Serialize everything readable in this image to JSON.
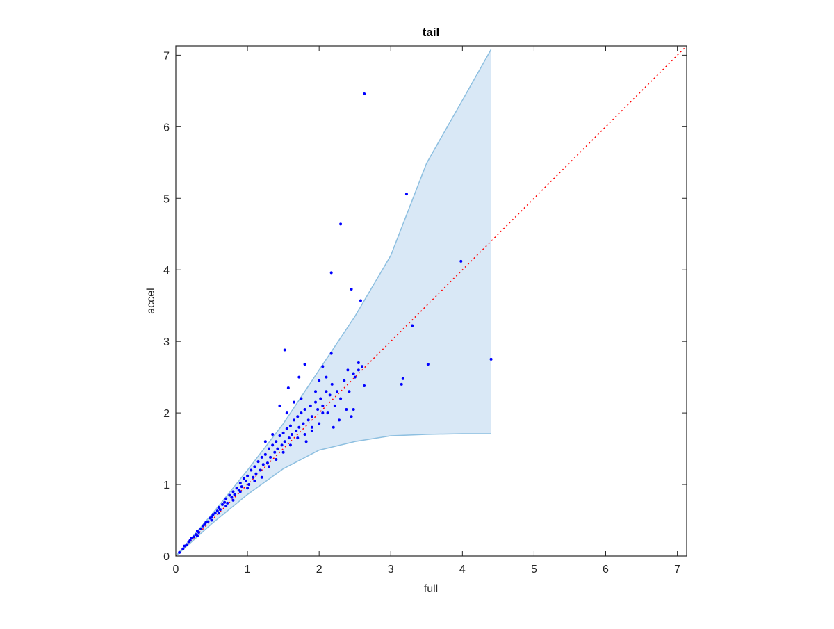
{
  "chart_data": {
    "type": "scatter",
    "title": "tail",
    "x_label": "full",
    "y_label": "accel",
    "xlim": [
      0,
      7.13
    ],
    "ylim": [
      0,
      7.13
    ],
    "xticks": [
      0,
      1,
      2,
      3,
      4,
      5,
      6,
      7
    ],
    "yticks": [
      0,
      1,
      2,
      3,
      4,
      5,
      6,
      7
    ],
    "band": {
      "color": "#9fc5e8",
      "edge_color": "#8dbfe0",
      "x": [
        0,
        0.5,
        1,
        1.5,
        2,
        2.5,
        3,
        3.5,
        4,
        4.4
      ],
      "upper": [
        0,
        0.58,
        1.2,
        1.85,
        2.6,
        3.35,
        4.2,
        5.49,
        6.37,
        7.08
      ],
      "lower": [
        0,
        0.45,
        0.86,
        1.22,
        1.48,
        1.6,
        1.68,
        1.7,
        1.71,
        1.71
      ]
    },
    "reference_line": {
      "color": "#ff0000",
      "x": [
        0,
        7.13
      ],
      "y": [
        0,
        7.13
      ]
    },
    "points": {
      "color": "#0000ff",
      "x": [
        2.63,
        3.22,
        2.3,
        2.17,
        2.45,
        2.58,
        3.98,
        3.3,
        1.52,
        4.4,
        3.52,
        3.17,
        3.15,
        2.17,
        2.05,
        1.8,
        2.55,
        2.6,
        2.63,
        2.48,
        2.4,
        1.57,
        1.72,
        1.45,
        2.05,
        2.48,
        2.2,
        2.28,
        1.9,
        1.82,
        0.05,
        0.1,
        0.12,
        0.15,
        0.18,
        0.2,
        0.22,
        0.25,
        0.28,
        0.3,
        0.32,
        0.35,
        0.38,
        0.4,
        0.42,
        0.45,
        0.48,
        0.5,
        0.52,
        0.55,
        0.58,
        0.6,
        0.62,
        0.65,
        0.68,
        0.7,
        0.72,
        0.75,
        0.78,
        0.8,
        0.82,
        0.85,
        0.88,
        0.9,
        0.92,
        0.95,
        0.98,
        1.0,
        1.02,
        1.05,
        1.08,
        1.1,
        1.12,
        1.15,
        1.18,
        1.2,
        1.22,
        1.25,
        1.28,
        1.3,
        1.32,
        1.35,
        1.38,
        1.4,
        1.42,
        1.45,
        1.48,
        1.5,
        1.52,
        1.55,
        1.58,
        1.6,
        1.62,
        1.65,
        1.68,
        1.7,
        1.72,
        1.75,
        1.78,
        1.8,
        1.85,
        1.88,
        1.9,
        1.95,
        1.98,
        2.02,
        2.05,
        2.1,
        2.12,
        2.15,
        2.18,
        2.22,
        2.25,
        2.3,
        2.35,
        2.38,
        2.42,
        2.45,
        2.5,
        2.55,
        0.3,
        0.5,
        0.7,
        0.9,
        1.1,
        1.3,
        1.5,
        1.7,
        1.9,
        0.6,
        0.8,
        1.0,
        1.2,
        1.4,
        1.6,
        1.8,
        2.0,
        1.25,
        1.35,
        1.55,
        1.65,
        1.75,
        1.95,
        2.0,
        2.1
      ],
      "y": [
        6.46,
        5.06,
        4.64,
        3.96,
        3.73,
        3.57,
        4.12,
        3.22,
        2.88,
        2.75,
        2.68,
        2.48,
        2.4,
        2.83,
        2.65,
        2.68,
        2.7,
        2.65,
        2.38,
        2.55,
        2.6,
        2.35,
        2.5,
        2.1,
        2.0,
        2.05,
        1.8,
        1.9,
        1.75,
        1.6,
        0.05,
        0.1,
        0.14,
        0.16,
        0.2,
        0.22,
        0.25,
        0.27,
        0.3,
        0.35,
        0.33,
        0.38,
        0.42,
        0.44,
        0.47,
        0.48,
        0.53,
        0.55,
        0.58,
        0.6,
        0.63,
        0.68,
        0.65,
        0.72,
        0.75,
        0.8,
        0.74,
        0.85,
        0.82,
        0.9,
        0.86,
        0.95,
        0.92,
        1.02,
        0.97,
        1.08,
        1.05,
        1.12,
        1.0,
        1.2,
        1.1,
        1.25,
        1.15,
        1.32,
        1.2,
        1.38,
        1.28,
        1.42,
        1.3,
        1.5,
        1.38,
        1.55,
        1.45,
        1.6,
        1.5,
        1.68,
        1.55,
        1.72,
        1.6,
        1.78,
        1.65,
        1.82,
        1.7,
        1.9,
        1.75,
        1.95,
        1.8,
        2.0,
        1.85,
        2.05,
        1.9,
        2.1,
        1.95,
        2.15,
        2.05,
        2.2,
        2.1,
        2.3,
        2.0,
        2.25,
        2.4,
        2.1,
        2.3,
        2.2,
        2.45,
        2.05,
        2.3,
        1.95,
        2.5,
        2.6,
        0.28,
        0.5,
        0.7,
        0.9,
        1.05,
        1.25,
        1.45,
        1.65,
        1.8,
        0.6,
        0.78,
        0.95,
        1.1,
        1.35,
        1.55,
        1.7,
        1.85,
        1.6,
        1.7,
        2.0,
        2.15,
        2.2,
        2.3,
        2.45,
        2.5
      ]
    }
  }
}
